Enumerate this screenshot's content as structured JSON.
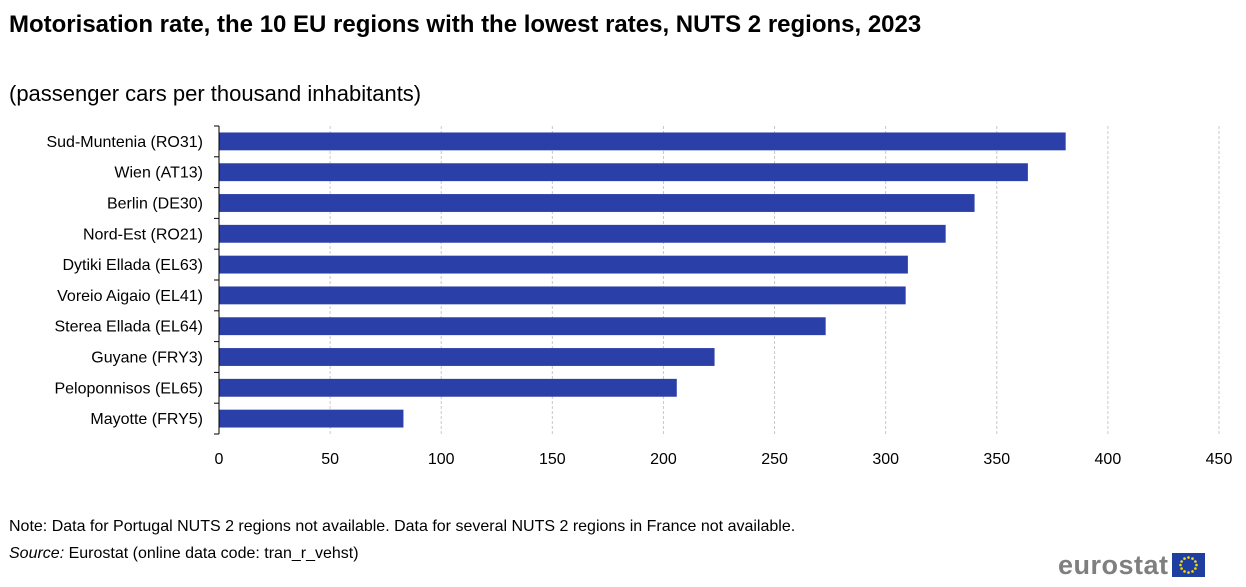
{
  "header": {
    "title": "Motorisation rate, the 10 EU regions with the lowest rates, NUTS 2 regions, 2023",
    "subtitle": "(passenger cars per thousand inhabitants)"
  },
  "chart_data": {
    "type": "bar",
    "orientation": "horizontal",
    "categories": [
      "Sud-Muntenia (RO31)",
      "Wien (AT13)",
      "Berlin (DE30)",
      "Nord-Est (RO21)",
      "Dytiki Ellada (EL63)",
      "Voreio Aigaio (EL41)",
      "Sterea Ellada (EL64)",
      "Guyane (FRY3)",
      "Peloponnisos (EL65)",
      "Mayotte (FRY5)"
    ],
    "values": [
      381,
      364,
      340,
      327,
      310,
      309,
      273,
      223,
      206,
      83
    ],
    "xlim": [
      0,
      450
    ],
    "xticks": [
      0,
      50,
      100,
      150,
      200,
      250,
      300,
      350,
      400,
      450
    ],
    "grid": "vertical dashed",
    "bar_color": "#2b3fa8"
  },
  "footer": {
    "note": "Note: Data for Portugal NUTS 2 regions not available. Data for several NUTS 2 regions in France not available.",
    "source_label": "Source:",
    "source_text": " Eurostat (online data code: tran_r_vehst)"
  },
  "logo": {
    "text": "eurostat",
    "icon": "eu-flag-icon"
  }
}
